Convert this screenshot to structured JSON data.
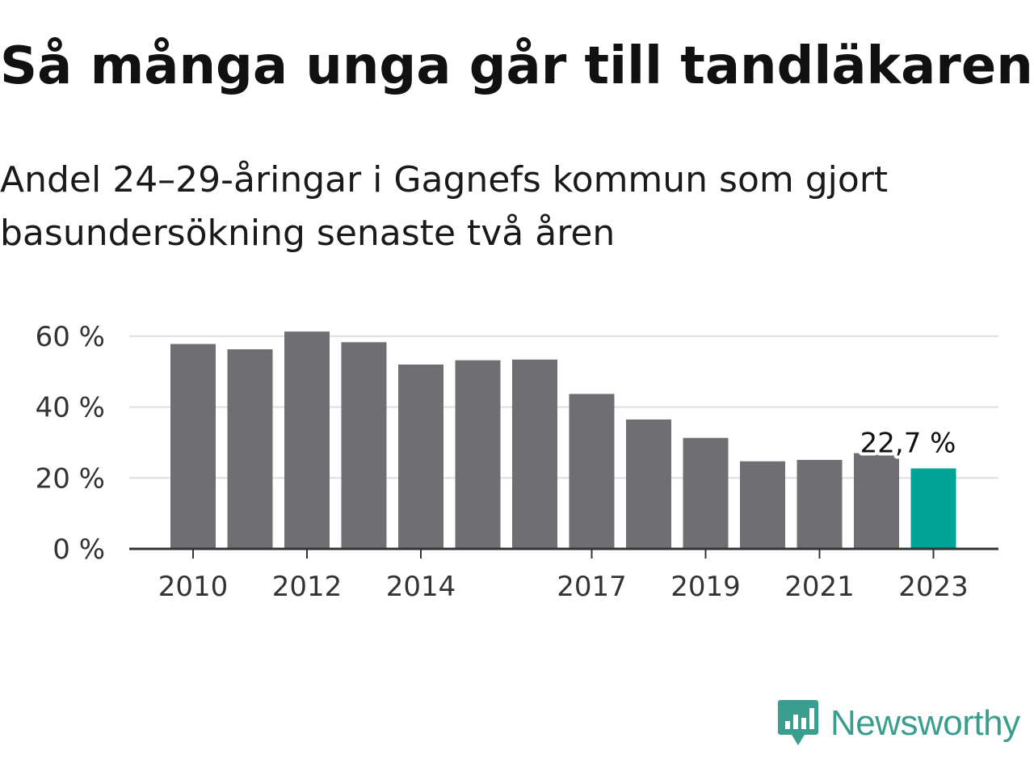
{
  "chart_data": {
    "type": "bar",
    "title": "Så många unga går till tandläkaren",
    "subtitle": "Andel 24–29-åringar i Gagnefs kommun som gjort basundersökning senaste två åren",
    "categories": [
      "2010",
      "2011",
      "2012",
      "2013",
      "2014",
      "2015",
      "2016",
      "2017",
      "2018",
      "2019",
      "2020",
      "2021",
      "2022",
      "2023"
    ],
    "x_tick_labels": [
      "2010",
      "2012",
      "2014",
      "2017",
      "2019",
      "2021",
      "2023"
    ],
    "values": [
      57.8,
      56.3,
      61.3,
      58.3,
      52.0,
      53.2,
      53.4,
      43.7,
      36.5,
      31.3,
      24.7,
      25.1,
      27.0,
      22.7
    ],
    "y_ticks": [
      "0 %",
      "20 %",
      "40 %",
      "60 %"
    ],
    "y_tick_values": [
      0,
      20,
      40,
      60
    ],
    "ylim": [
      0,
      60
    ],
    "grid": true,
    "xlabel": "",
    "ylabel": "",
    "highlight_index": 13,
    "highlight_label": "22,7 %",
    "colors": {
      "bar": "#6f6e73",
      "highlight": "#00a497",
      "grid": "#dddddd",
      "axis": "#333333"
    }
  },
  "brand": {
    "name": "Newsworthy",
    "icon": "newsworthy-logo-icon",
    "color": "#3a9e8f"
  }
}
